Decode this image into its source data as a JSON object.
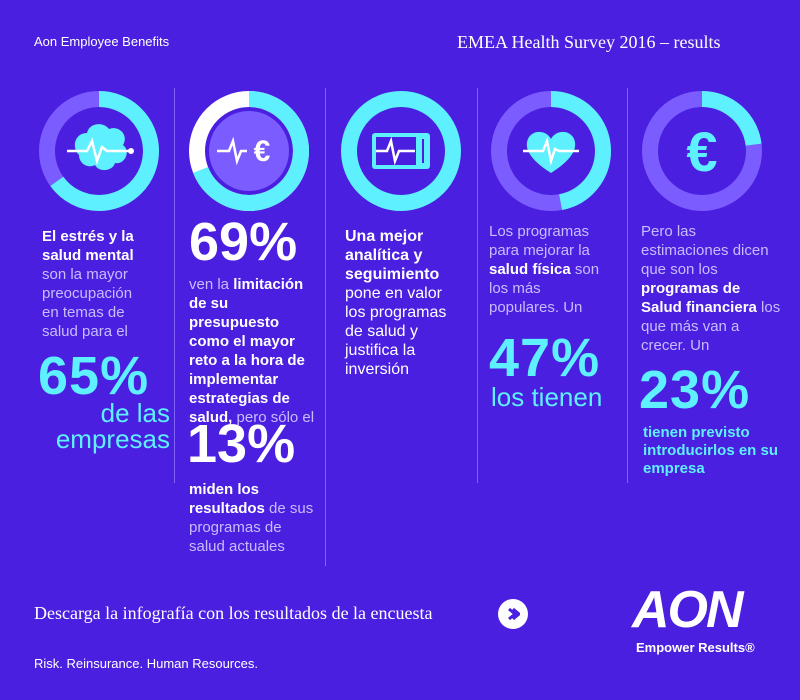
{
  "header": {
    "brand": "Aon Employee Benefits",
    "survey_title": "EMEA Health Survey 2016 – results"
  },
  "columns": [
    {
      "icon": "brain-icon",
      "ring_value": 65,
      "text": {
        "b1": "El estrés y la salud mental",
        "t1": "son la mayor preocupación en temas de salud para el"
      },
      "stat": "65%",
      "stat_label": "de las empresas"
    },
    {
      "icon": "euro-heartbeat-icon",
      "ring_value": 69,
      "stat": "69%",
      "text": {
        "t1": "ven la",
        "b1": "limitación de su presupuesto como el mayor reto a la hora de implementar estrategias de salud,",
        "t2": "pero sólo el"
      },
      "stat2": "13%",
      "text2": {
        "b1": "miden los resultados",
        "t1": "de sus programas de salud actuales"
      }
    },
    {
      "icon": "monitor-heartbeat-icon",
      "ring_value": 100,
      "text": {
        "b1": "Una mejor analítica y seguimiento",
        "t1": "pone en valor los programas de salud  y justifica  la inversión"
      }
    },
    {
      "icon": "heart-icon",
      "ring_value": 47,
      "text": {
        "t1": "Los programas para mejorar la",
        "b1": "salud física",
        "t2": "son los más populares. Un"
      },
      "stat": "47%",
      "stat_label": "los tienen"
    },
    {
      "icon": "euro-icon",
      "ring_value": 23,
      "text": {
        "t1": "Pero las estimaciones dicen que son los",
        "b1": "programas de Salud financiera",
        "t2": "los que más van a crecer. Un"
      },
      "stat": "23%",
      "stat_label": "tienen previsto introducirlos en su empresa"
    }
  ],
  "footer": {
    "download": "Descarga la infografía con los resultados de la encuesta",
    "tagline": "Risk. Reinsurance. Human Resources.",
    "logo": "AON",
    "logo_sub": "Empower Results®"
  },
  "colors": {
    "background": "#4a1fe0",
    "cyan": "#5ff0ff",
    "ring_track": "#7b5cff",
    "text_muted": "#c8bcff"
  }
}
